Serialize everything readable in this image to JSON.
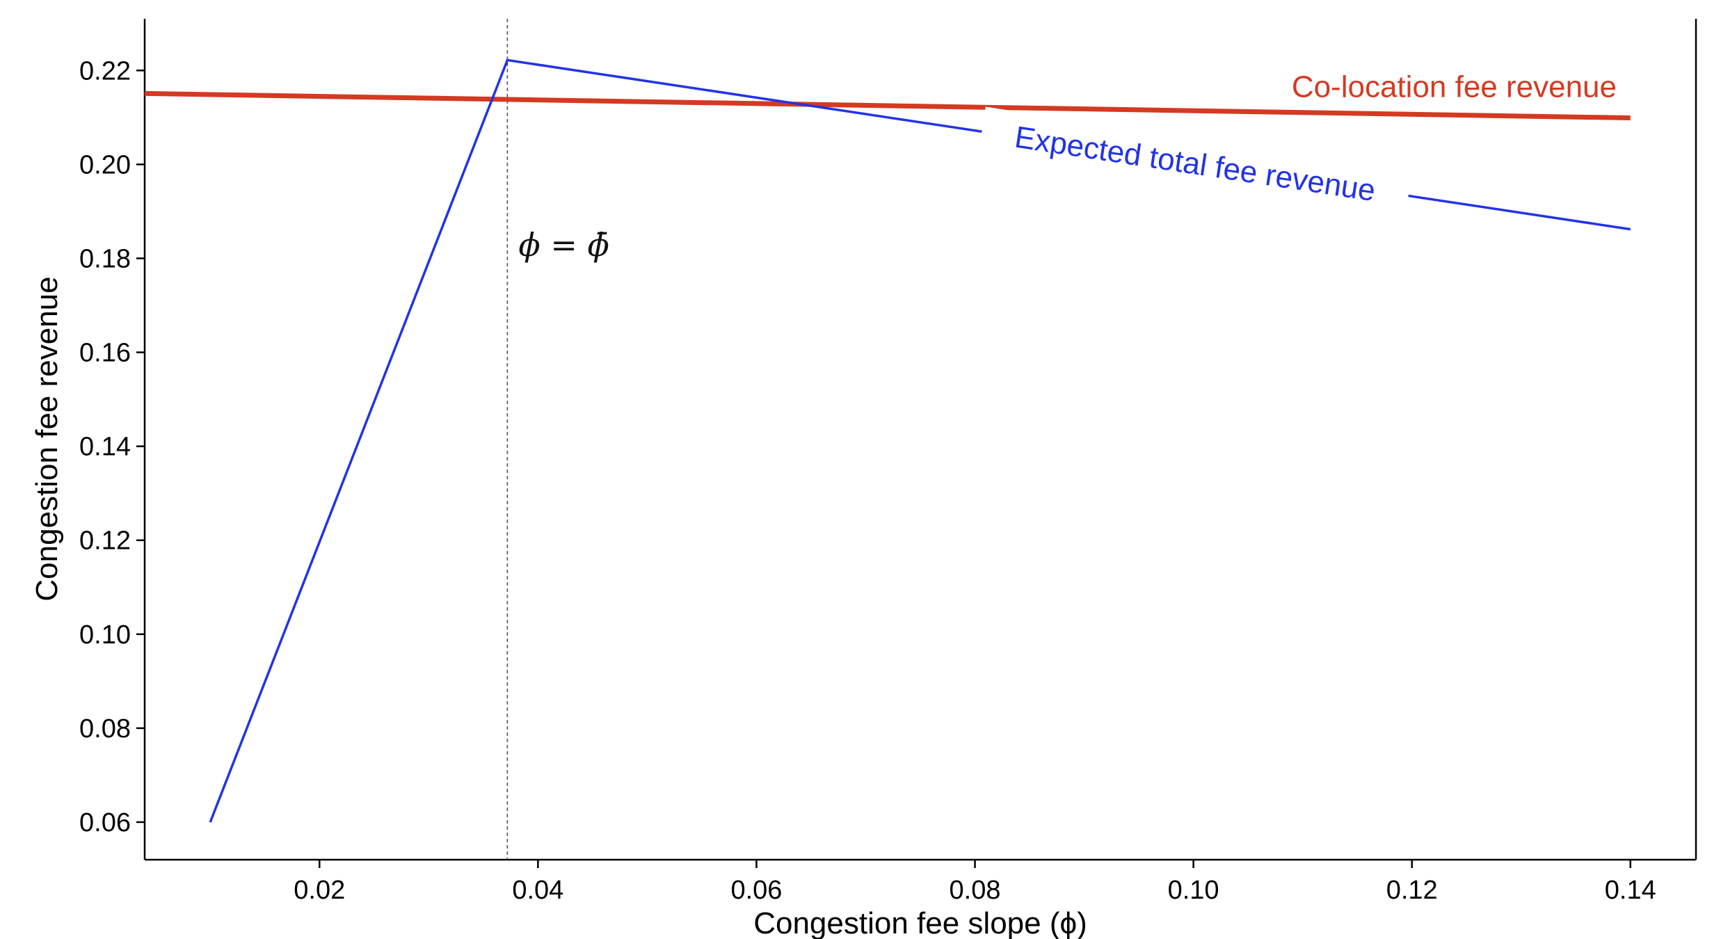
{
  "chart_data": {
    "type": "line",
    "xlabel": "Congestion fee slope (ϕ)",
    "ylabel": "Congestion fee revenue",
    "xlim": [
      0.004,
      0.146
    ],
    "ylim": [
      0.052,
      0.231
    ],
    "xticks": [
      {
        "value": 0.02,
        "label": "0.02"
      },
      {
        "value": 0.04,
        "label": "0.04"
      },
      {
        "value": 0.06,
        "label": "0.06"
      },
      {
        "value": 0.08,
        "label": "0.08"
      },
      {
        "value": 0.1,
        "label": "0.10"
      },
      {
        "value": 0.12,
        "label": "0.12"
      },
      {
        "value": 0.14,
        "label": "0.14"
      }
    ],
    "yticks": [
      {
        "value": 0.06,
        "label": "0.06"
      },
      {
        "value": 0.08,
        "label": "0.08"
      },
      {
        "value": 0.1,
        "label": "0.10"
      },
      {
        "value": 0.12,
        "label": "0.12"
      },
      {
        "value": 0.14,
        "label": "0.14"
      },
      {
        "value": 0.16,
        "label": "0.16"
      },
      {
        "value": 0.18,
        "label": "0.18"
      },
      {
        "value": 0.2,
        "label": "0.20"
      },
      {
        "value": 0.22,
        "label": "0.22"
      }
    ],
    "series": [
      {
        "name": "Co-location fee revenue",
        "color": "#d43a22",
        "x": [
          0.004,
          0.14
        ],
        "y": [
          0.2151,
          0.2099
        ]
      },
      {
        "name": "Expected total fee revenue",
        "color": "#2233e6",
        "x": [
          0.01,
          0.0372,
          0.14
        ],
        "y": [
          0.06,
          0.2222,
          0.1862
        ]
      }
    ],
    "reference_line": {
      "x": 0.0372,
      "label": "ϕ = ϕ̄"
    },
    "grid": false,
    "legend": "inline labels"
  }
}
